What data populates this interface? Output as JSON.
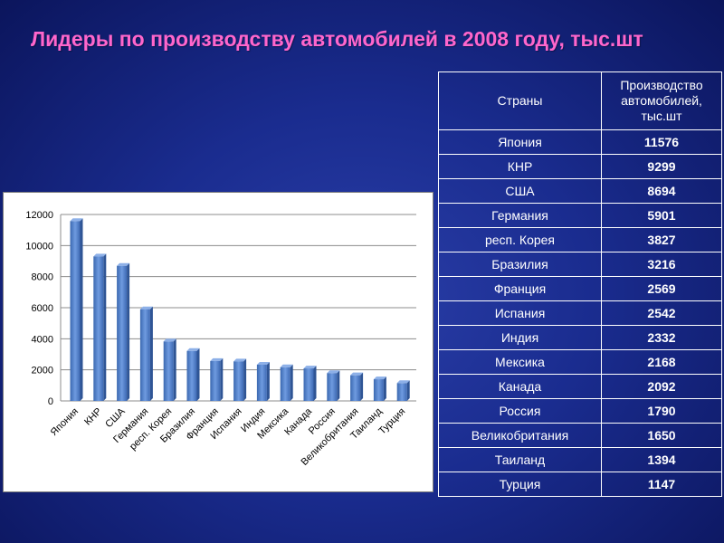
{
  "slide": {
    "title": "Лидеры по производству автомобилей в 2008 году, тыс.шт"
  },
  "table": {
    "headers": [
      "Страны",
      "Производство автомобилей, тыс.шт"
    ],
    "rows": [
      [
        "Япония",
        "11576"
      ],
      [
        "КНР",
        "9299"
      ],
      [
        "США",
        "8694"
      ],
      [
        "Германия",
        "5901"
      ],
      [
        "респ. Корея",
        "3827"
      ],
      [
        "Бразилия",
        "3216"
      ],
      [
        "Франция",
        "2569"
      ],
      [
        "Испания",
        "2542"
      ],
      [
        "Индия",
        "2332"
      ],
      [
        "Мексика",
        "2168"
      ],
      [
        "Канада",
        "2092"
      ],
      [
        "Россия",
        "1790"
      ],
      [
        "Великобритания",
        "1650"
      ],
      [
        "Таиланд",
        "1394"
      ],
      [
        "Турция",
        "1147"
      ]
    ]
  },
  "chart_data": {
    "type": "bar",
    "categories": [
      "Япония",
      "КНР",
      "США",
      "Германия",
      "респ. Корея",
      "Бразилия",
      "Франция",
      "Испания",
      "Индия",
      "Мексика",
      "Канада",
      "Россия",
      "Великобритания",
      "Таиланд",
      "Турция"
    ],
    "values": [
      11576,
      9299,
      8694,
      5901,
      3827,
      3216,
      2569,
      2542,
      2332,
      2168,
      2092,
      1790,
      1650,
      1394,
      1147
    ],
    "yticks": [
      "0",
      "2000",
      "4000",
      "6000",
      "8000",
      "10000",
      "12000"
    ],
    "ylim": [
      0,
      12000
    ],
    "grid": true,
    "bar_color": "#4f7ec4",
    "title": "",
    "xlabel": "",
    "ylabel": ""
  },
  "colors": {
    "title": "#ff66cc",
    "background": "#1a2c8f",
    "bars": "#4f7ec4"
  }
}
